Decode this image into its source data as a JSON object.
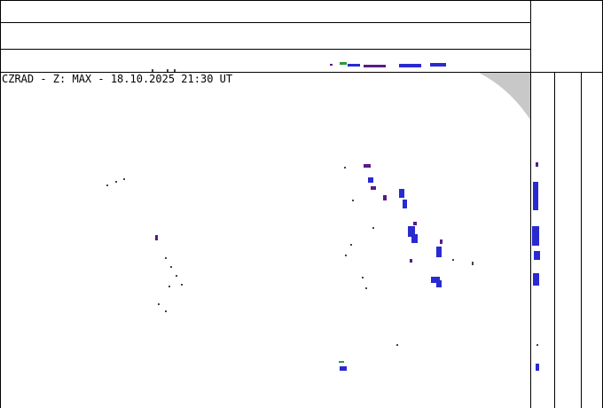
{
  "header": {
    "title": "CZRAD - Z: MAX - 18.10.2025 21:30 UT"
  }
}
